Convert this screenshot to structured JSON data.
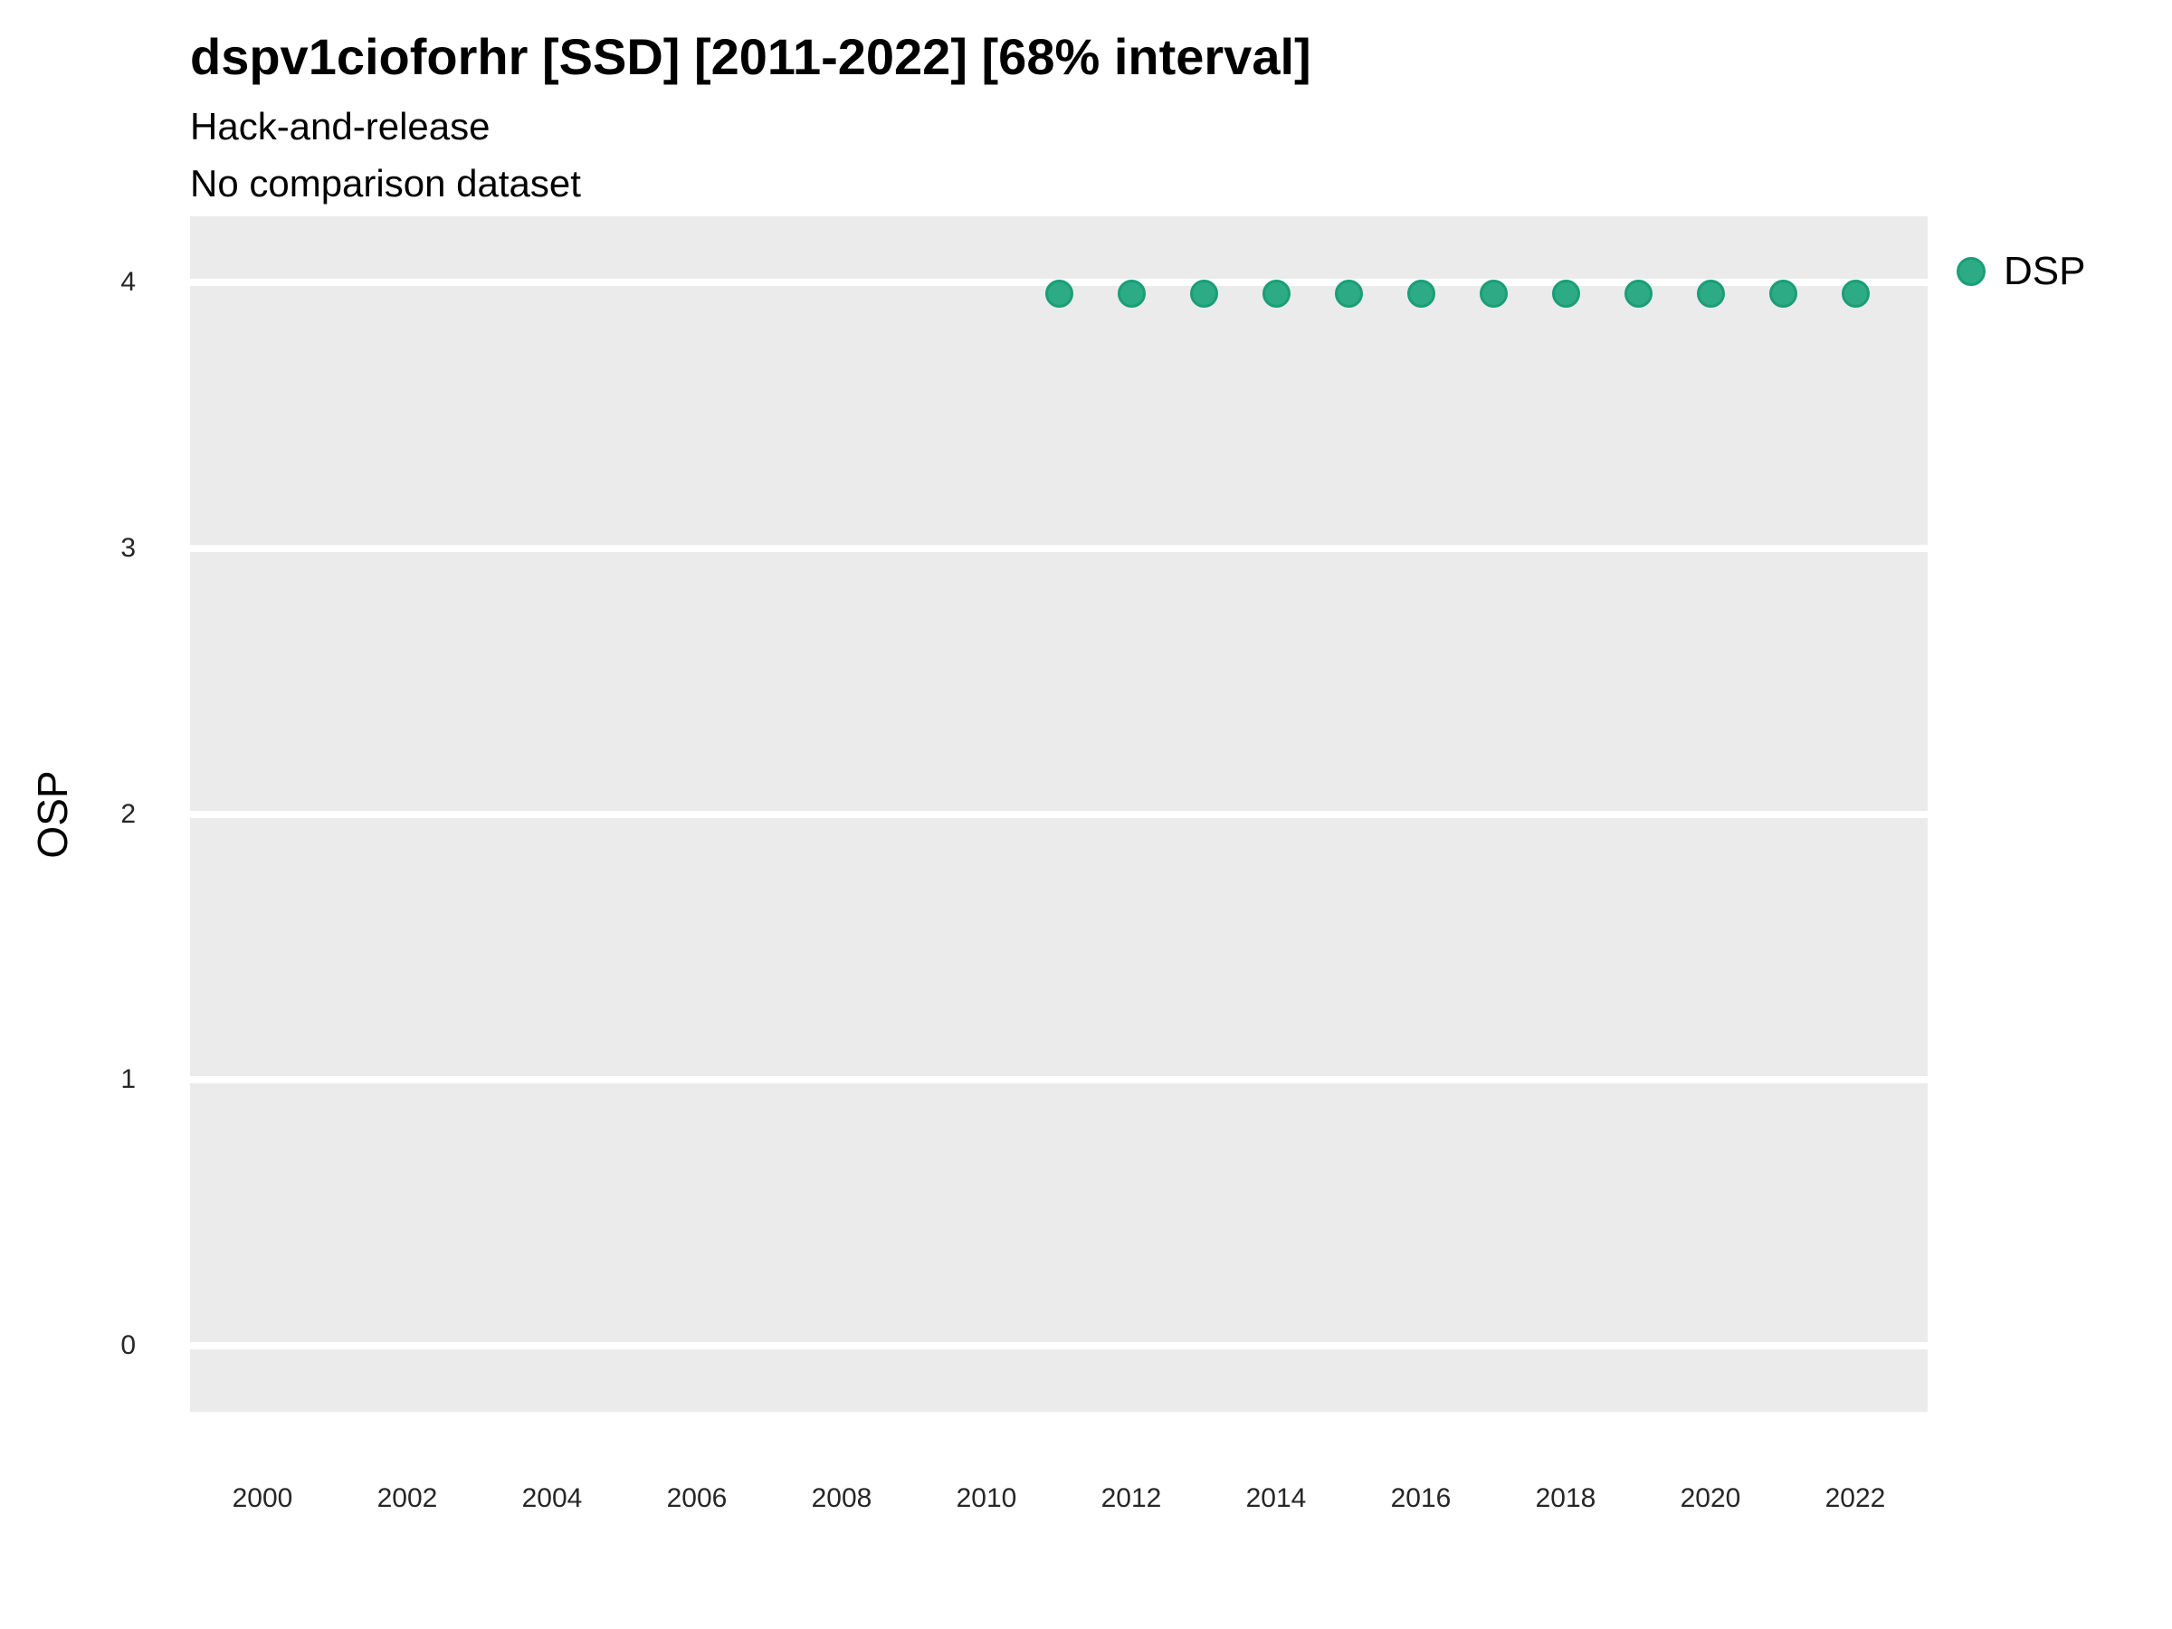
{
  "header": {
    "title": "dspv1cioforhr [SSD] [2011-2022] [68% interval]",
    "subtitle_line1": "Hack-and-release",
    "subtitle_line2": "No comparison dataset"
  },
  "colors": {
    "point_fill": "#2CAB84",
    "point_stroke": "#1B9E77",
    "panel_background": "#EBEBEB",
    "gridline": "#FFFFFF",
    "tick_text": "#262626"
  },
  "chart_data": {
    "type": "scatter",
    "title": "dspv1cioforhr [SSD] [2011-2022] [68% interval]",
    "subtitle": [
      "Hack-and-release",
      "No comparison dataset"
    ],
    "xlabel": "",
    "ylabel": "OSP",
    "xlim": [
      1999,
      2023
    ],
    "ylim": [
      -0.25,
      4.25
    ],
    "x_ticks": [
      2000,
      2002,
      2004,
      2006,
      2008,
      2010,
      2012,
      2014,
      2016,
      2018,
      2020,
      2022
    ],
    "y_ticks": [
      0,
      1,
      2,
      3,
      4
    ],
    "grid": "horizontal-major-only",
    "legend": {
      "position": "right",
      "entries": [
        {
          "label": "DSP",
          "color": "#2CAB84"
        }
      ]
    },
    "series": [
      {
        "name": "DSP",
        "color": "#2CAB84",
        "stroke": "#1B9E77",
        "points": [
          {
            "x": 2011,
            "y": 3.96
          },
          {
            "x": 2012,
            "y": 3.96
          },
          {
            "x": 2013,
            "y": 3.96
          },
          {
            "x": 2014,
            "y": 3.96
          },
          {
            "x": 2015,
            "y": 3.96
          },
          {
            "x": 2016,
            "y": 3.96
          },
          {
            "x": 2017,
            "y": 3.96
          },
          {
            "x": 2018,
            "y": 3.96
          },
          {
            "x": 2019,
            "y": 3.96
          },
          {
            "x": 2020,
            "y": 3.96
          },
          {
            "x": 2021,
            "y": 3.96
          },
          {
            "x": 2022,
            "y": 3.96
          }
        ]
      }
    ]
  }
}
